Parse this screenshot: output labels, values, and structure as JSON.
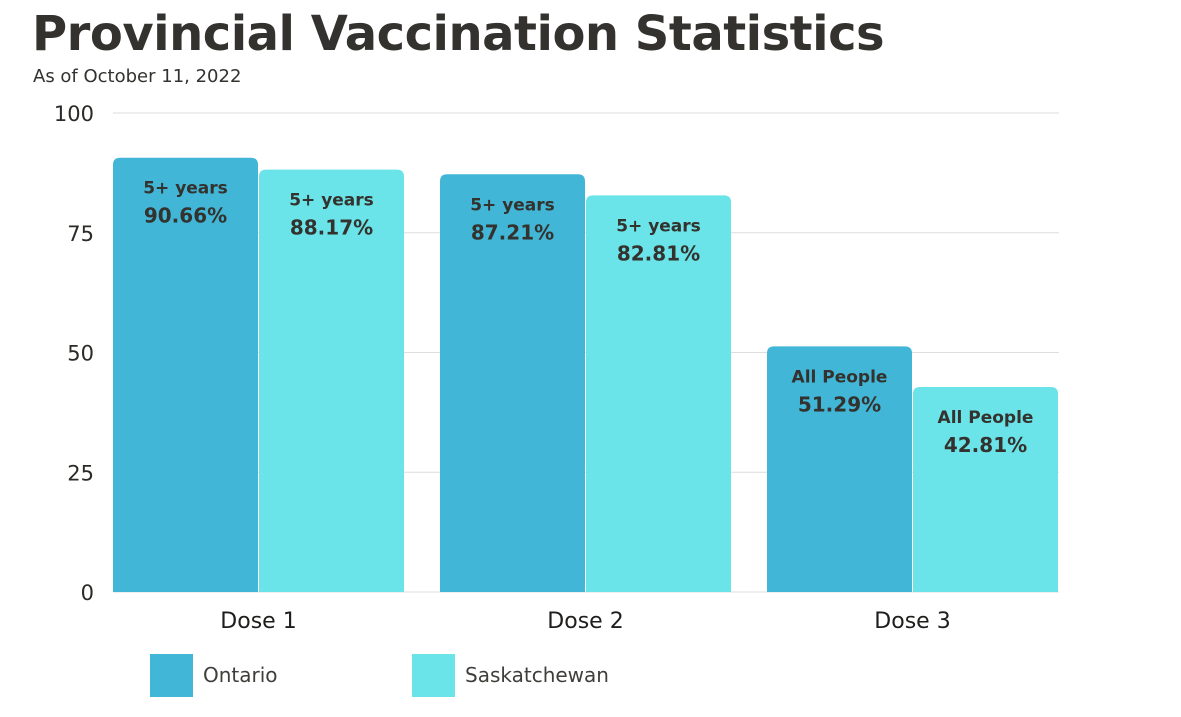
{
  "chart_data": {
    "type": "bar",
    "title": "Provincial Vaccination Statistics",
    "subtitle": "As of October 11, 2022",
    "categories": [
      "Dose 1",
      "Dose 2",
      "Dose 3"
    ],
    "series": [
      {
        "name": "Ontario",
        "color": "#41b6d6",
        "values": [
          90.66,
          87.21,
          51.29
        ],
        "group_labels": [
          "5+ years",
          "5+ years",
          "All People"
        ],
        "value_labels": [
          "90.66%",
          "87.21%",
          "51.29%"
        ]
      },
      {
        "name": "Saskatchewan",
        "color": "#6ae4e8",
        "values": [
          88.17,
          82.81,
          42.81
        ],
        "group_labels": [
          "5+ years",
          "5+ years",
          "All People"
        ],
        "value_labels": [
          "88.17%",
          "82.81%",
          "42.81%"
        ]
      }
    ],
    "ylim": [
      0,
      100
    ],
    "yticks": [
      "0",
      "25",
      "50",
      "75",
      "100"
    ],
    "grid": true,
    "legend_position": "bottom-left"
  }
}
